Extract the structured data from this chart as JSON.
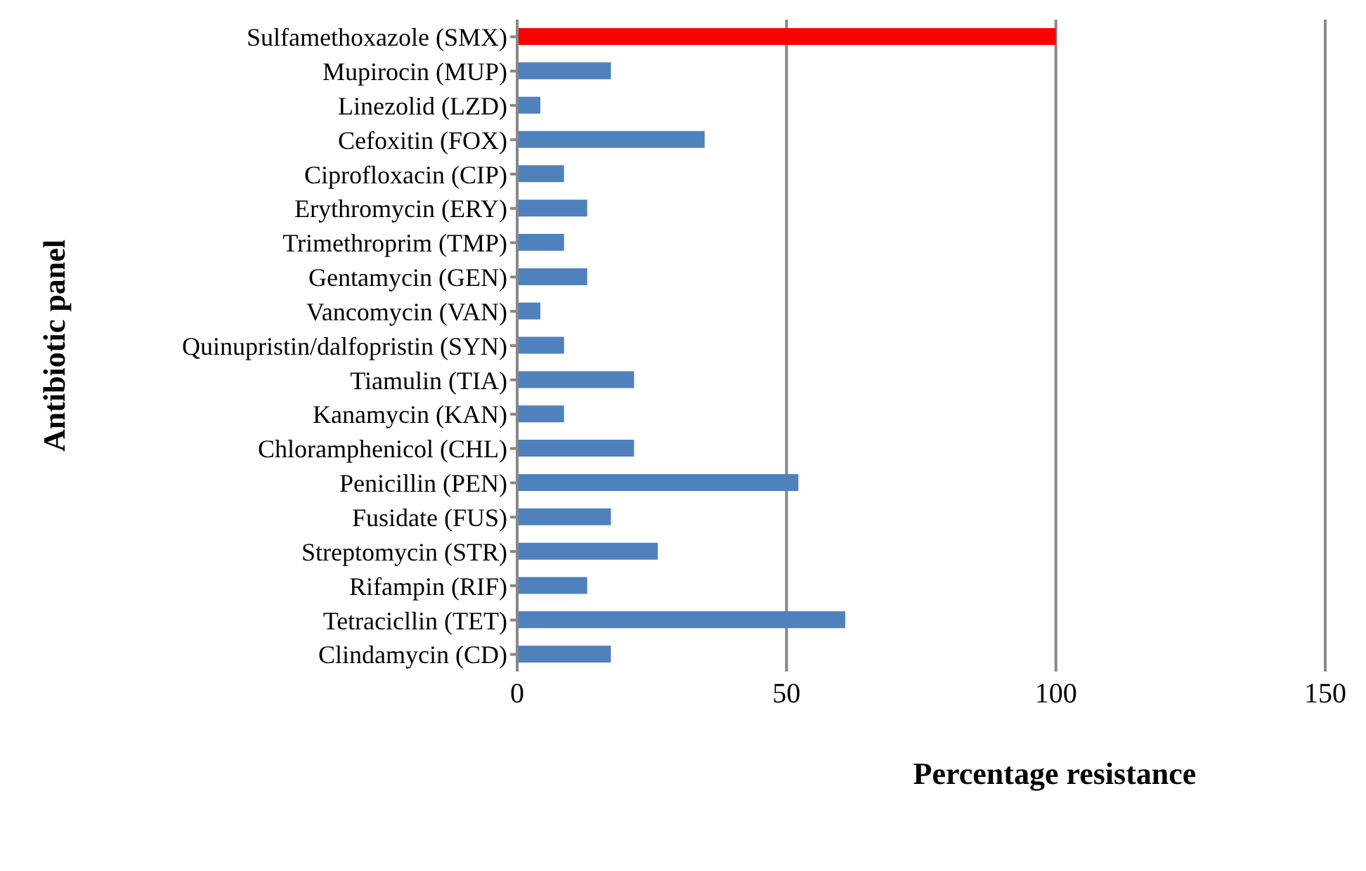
{
  "chart_data": {
    "type": "bar",
    "orientation": "horizontal",
    "xlabel": "Percentage resistance",
    "ylabel": "Antibiotic panel",
    "categories": [
      "Sulfamethoxazole (SMX)",
      "Mupirocin (MUP)",
      "Linezolid (LZD)",
      "Cefoxitin (FOX)",
      "Ciprofloxacin (CIP)",
      "Erythromycin (ERY)",
      "Trimethroprim (TMP)",
      "Gentamycin (GEN)",
      "Vancomycin (VAN)",
      "Quinupristin/dalfopristin (SYN)",
      "Tiamulin (TIA)",
      "Kanamycin (KAN)",
      "Chloramphenicol (CHL)",
      "Penicillin (PEN)",
      "Fusidate (FUS)",
      "Streptomycin (STR)",
      "Rifampin (RIF)",
      "Tetracicllin (TET)",
      "Clindamycin (CD)"
    ],
    "values": [
      100,
      17.4,
      4.3,
      34.8,
      8.7,
      13,
      8.7,
      13,
      4.3,
      8.7,
      21.7,
      8.7,
      21.7,
      52.2,
      17.4,
      26.1,
      13,
      60.9,
      17.4
    ],
    "colors": [
      "#ff0000",
      "#4f81bd",
      "#4f81bd",
      "#4f81bd",
      "#4f81bd",
      "#4f81bd",
      "#4f81bd",
      "#4f81bd",
      "#4f81bd",
      "#4f81bd",
      "#4f81bd",
      "#4f81bd",
      "#4f81bd",
      "#4f81bd",
      "#4f81bd",
      "#4f81bd",
      "#4f81bd",
      "#4f81bd",
      "#4f81bd"
    ],
    "xlim": [
      0,
      150
    ],
    "xticks": [
      0,
      50,
      100,
      150
    ],
    "grid": "x"
  }
}
